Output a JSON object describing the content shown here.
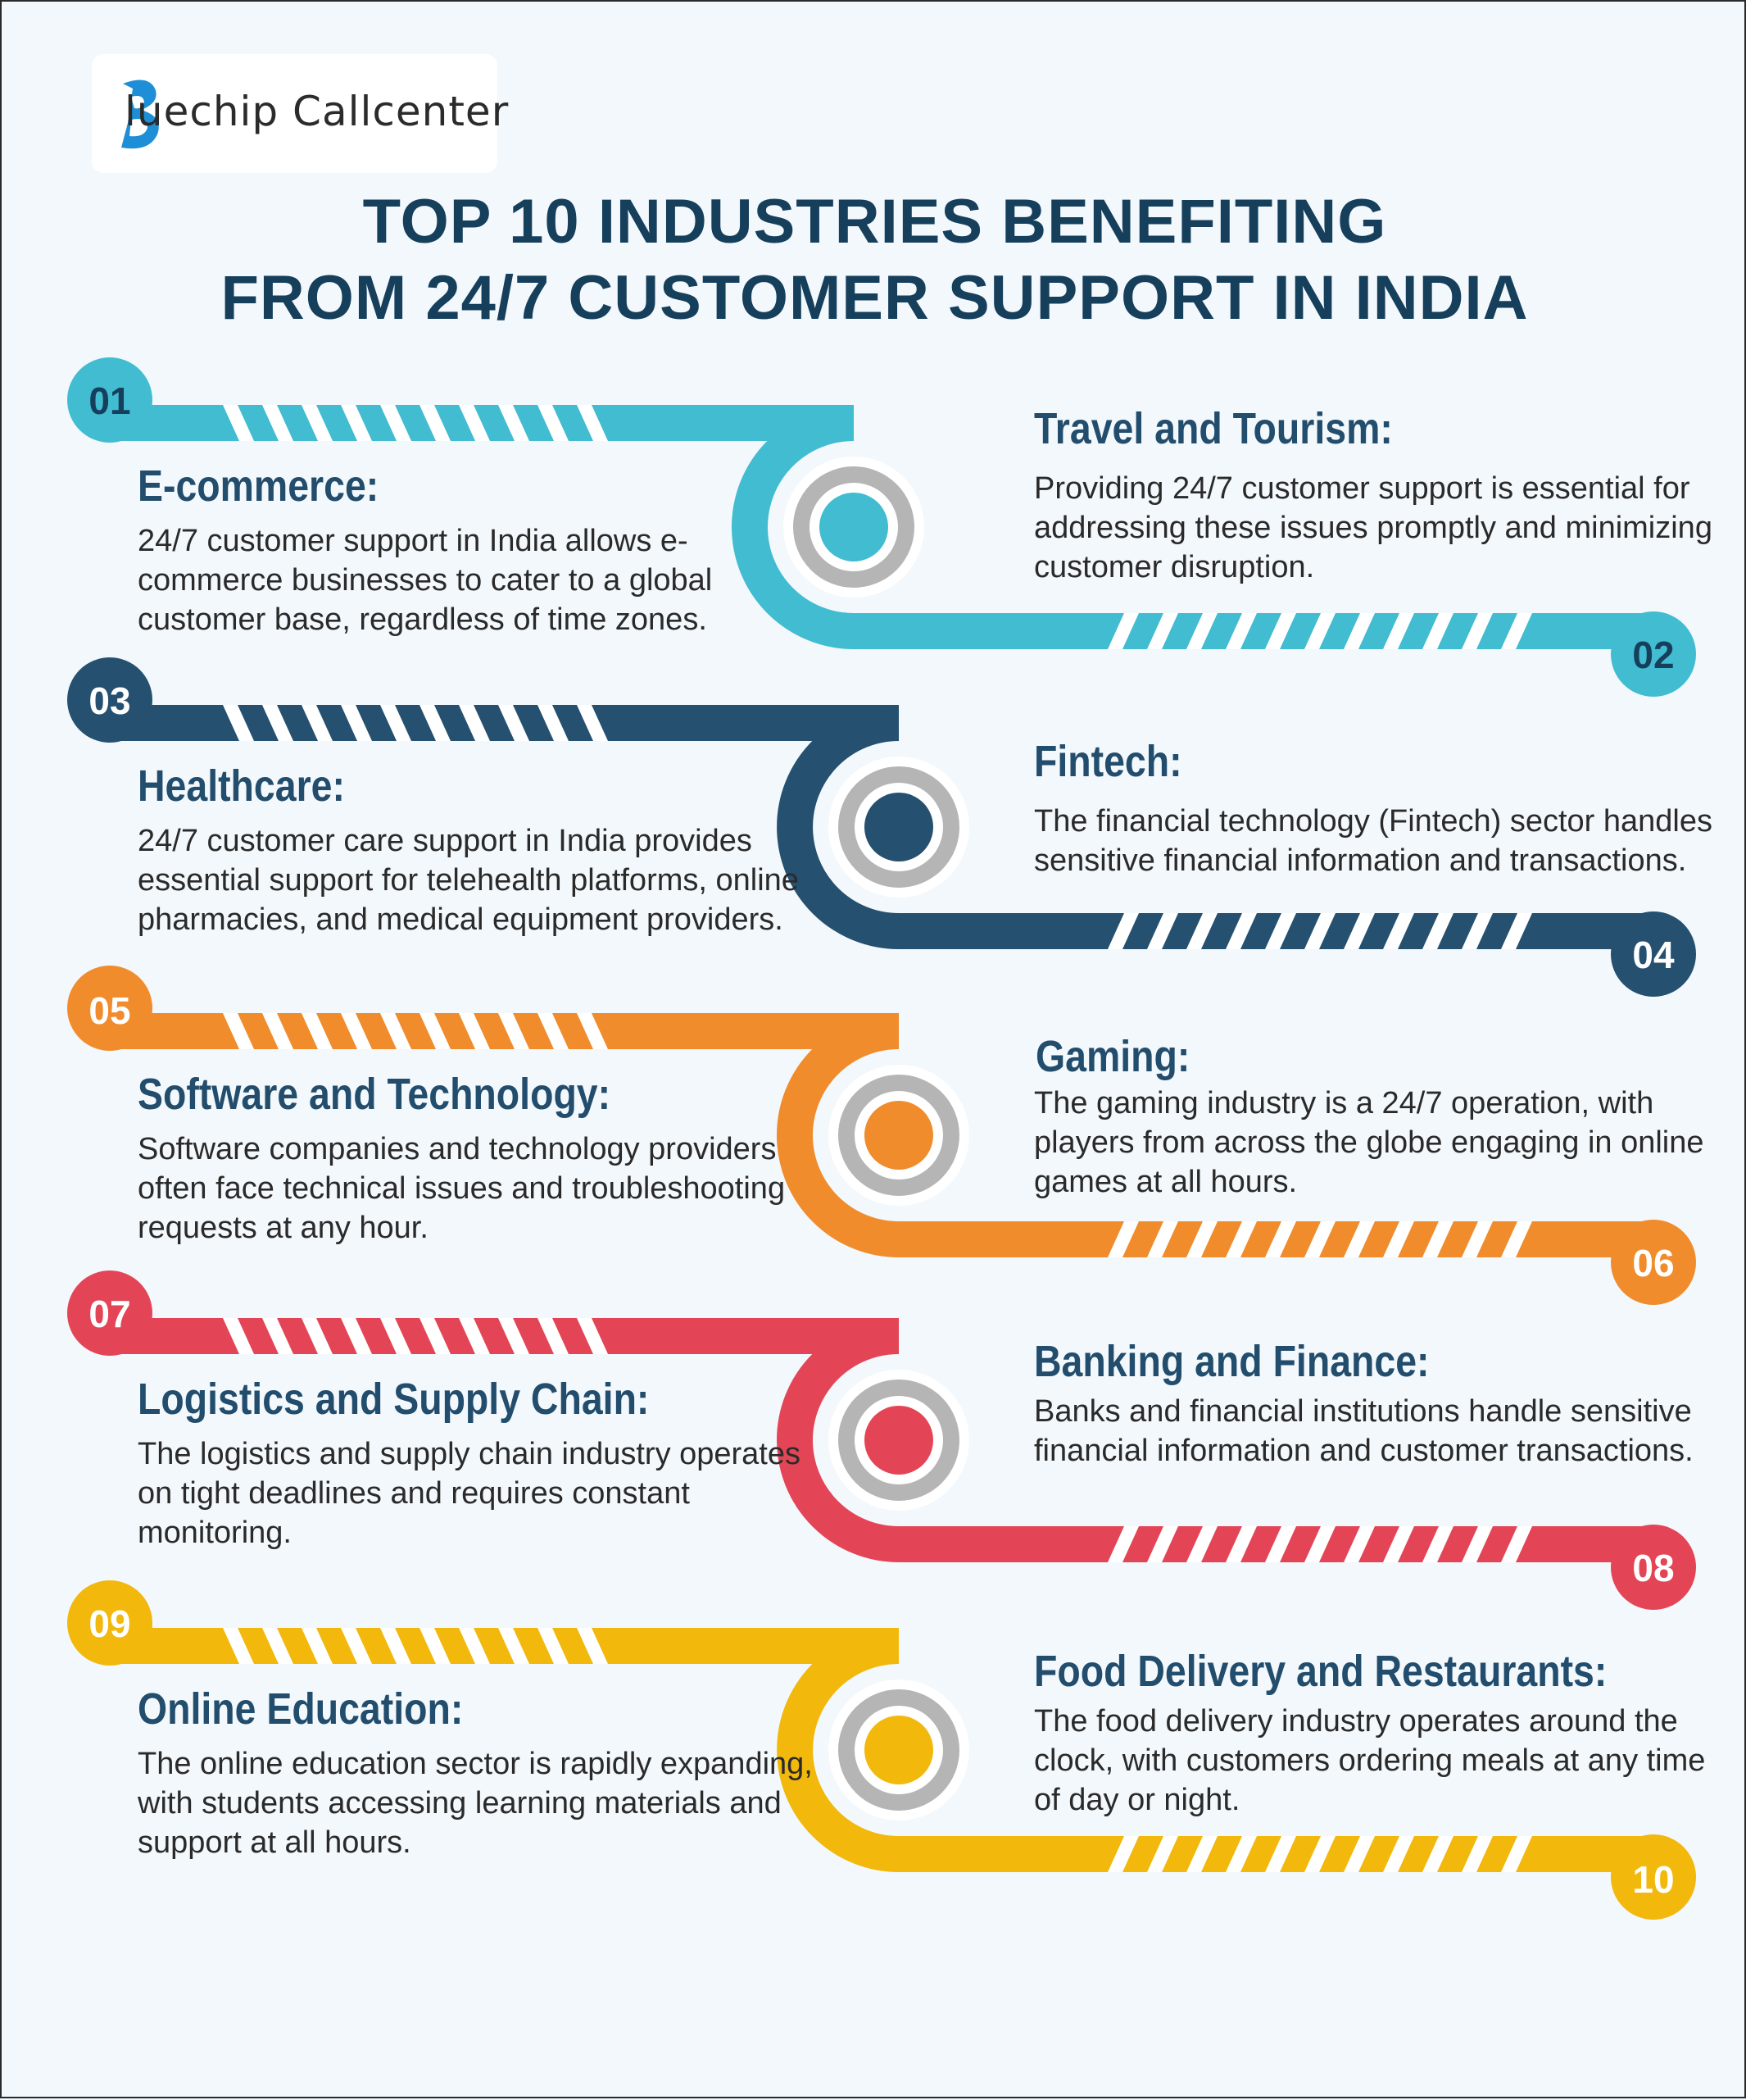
{
  "brand": {
    "logo_text": "luechip Callcenter",
    "logo_full": "Bluechip Callcenter"
  },
  "title": {
    "line1": "TOP 10 INDUSTRIES BENEFITING",
    "line2": "FROM 24/7 CUSTOMER SUPPORT IN INDIA"
  },
  "colors": {
    "teal": "#42bcd0",
    "navy": "#25506f",
    "orange": "#f08c2c",
    "red": "#e44556",
    "yellow": "#f2b80c",
    "ring": "#b5b5b5",
    "title": "#163f5c"
  },
  "items": [
    {
      "num": "01",
      "head": "E-commerce:",
      "desc": [
        "24/7 customer support in India allows e-",
        "commerce businesses to cater to a global",
        "customer base, regardless of time zones."
      ]
    },
    {
      "num": "02",
      "head": "Travel and Tourism:",
      "desc": [
        "Providing 24/7 customer support is essential for",
        "addressing these issues promptly and minimizing",
        "customer disruption."
      ]
    },
    {
      "num": "03",
      "head": "Healthcare:",
      "desc": [
        "24/7 customer care support in India provides",
        "essential support for telehealth platforms, online",
        "pharmacies, and medical equipment providers."
      ]
    },
    {
      "num": "04",
      "head": "Fintech:",
      "desc": [
        "The financial technology (Fintech) sector handles",
        "sensitive financial information and transactions."
      ]
    },
    {
      "num": "05",
      "head": "Software and Technology:",
      "desc": [
        "Software companies and technology providers",
        "often face technical issues and troubleshooting",
        "requests at any hour."
      ]
    },
    {
      "num": "06",
      "head": "Gaming:",
      "desc": [
        "The gaming industry is a 24/7 operation, with",
        "players from across the globe engaging in online",
        "games at all hours."
      ]
    },
    {
      "num": "07",
      "head": "Logistics and Supply Chain:",
      "desc": [
        "The logistics and supply chain industry operates",
        "on tight deadlines and requires constant",
        "monitoring."
      ]
    },
    {
      "num": "08",
      "head": "Banking and Finance:",
      "desc": [
        "Banks and financial institutions handle sensitive",
        "financial information and customer transactions."
      ]
    },
    {
      "num": "09",
      "head": "Online Education:",
      "desc": [
        "The online education sector is rapidly expanding,",
        "with students accessing learning materials and",
        "support at all hours."
      ]
    },
    {
      "num": "10",
      "head": "Food Delivery and Restaurants:",
      "desc": [
        "The food delivery industry operates around the",
        "clock, with customers ordering meals at any time",
        "of day or night."
      ]
    }
  ]
}
